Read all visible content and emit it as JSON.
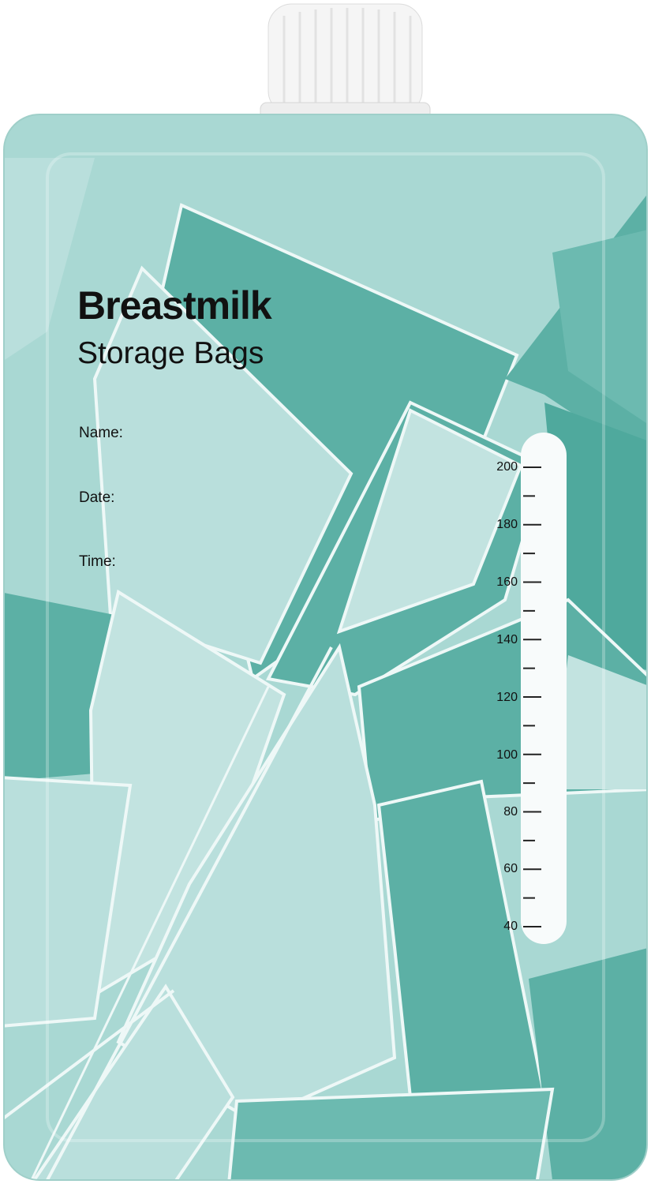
{
  "product": {
    "title": "Breastmilk",
    "subtitle": "Storage Bags",
    "fields": [
      {
        "label": "Name:"
      },
      {
        "label": "Date:"
      },
      {
        "label": "Time:"
      }
    ]
  },
  "scale": {
    "unit_marks": [
      "200",
      "180",
      "160",
      "140",
      "120",
      "100",
      "80",
      "60",
      "40"
    ],
    "max": 200,
    "min": 40,
    "minor_step": 10
  },
  "colors": {
    "light_teal": "#b9dfdc",
    "mid_teal": "#8fcdc6",
    "dark_teal": "#5cb0a5",
    "outline": "#eef8f7",
    "cap": "#f4f4f4"
  }
}
